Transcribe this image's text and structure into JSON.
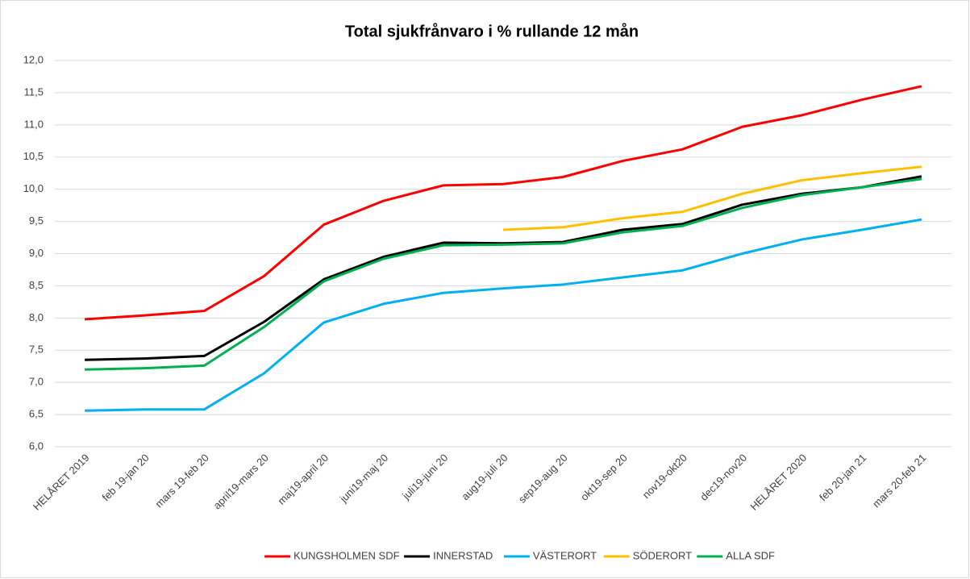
{
  "chart_data": {
    "type": "line",
    "title": "Total sjukfrånvaro i % rullande 12 mån",
    "categories": [
      "HELÅRET 2019",
      "feb 19-jan 20",
      "mars 19-feb 20",
      "april19-mars 20",
      "maj19-april 20",
      "juni19-maj 20",
      "juli19-juni 20",
      "aug19-juli 20",
      "sep19-aug 20",
      "okt19-sep 20",
      "nov19-okt20",
      "dec19-nov20",
      "HELÅRET 2020",
      "feb 20-jan 21",
      "mars 20-feb 21"
    ],
    "series": [
      {
        "name": "KUNGSHOLMEN SDF",
        "color": "#ff0000",
        "values": [
          7.98,
          8.04,
          8.11,
          8.65,
          9.45,
          9.82,
          10.06,
          10.08,
          10.19,
          10.44,
          10.62,
          10.97,
          11.15,
          11.39,
          11.6
        ]
      },
      {
        "name": "INNERSTAD",
        "color": "#000000",
        "values": [
          7.35,
          7.37,
          7.41,
          7.94,
          8.6,
          8.95,
          9.17,
          9.16,
          9.18,
          9.37,
          9.46,
          9.76,
          9.93,
          10.03,
          10.2
        ]
      },
      {
        "name": "VÄSTERORT",
        "color": "#00b0f0",
        "values": [
          6.56,
          6.58,
          6.58,
          7.14,
          7.93,
          8.22,
          8.39,
          8.46,
          8.52,
          8.63,
          8.74,
          9.0,
          9.22,
          9.37,
          9.53
        ]
      },
      {
        "name": "SÖDERORT",
        "color": "#ffc000",
        "values": [
          null,
          null,
          null,
          null,
          null,
          null,
          null,
          9.37,
          9.41,
          9.55,
          9.65,
          9.93,
          10.14,
          10.25,
          10.35
        ]
      },
      {
        "name": "ALLA SDF",
        "color": "#00b050",
        "values": [
          7.2,
          7.22,
          7.26,
          7.86,
          8.57,
          8.92,
          9.13,
          9.14,
          9.16,
          9.33,
          9.43,
          9.71,
          9.91,
          10.03,
          10.16
        ]
      }
    ],
    "ylim": [
      6,
      12
    ],
    "yticks": [
      {
        "value": 6,
        "label": "6,0"
      },
      {
        "value": 6.5,
        "label": "6,5"
      },
      {
        "value": 7,
        "label": "7,0"
      },
      {
        "value": 7.5,
        "label": "7,5"
      },
      {
        "value": 8,
        "label": "8,0"
      },
      {
        "value": 8.5,
        "label": "8,5"
      },
      {
        "value": 9,
        "label": "9,0"
      },
      {
        "value": 9.5,
        "label": "9,5"
      },
      {
        "value": 10,
        "label": "10,0"
      },
      {
        "value": 10.5,
        "label": "10,5"
      },
      {
        "value": 11,
        "label": "11,0"
      },
      {
        "value": 11.5,
        "label": "11,5"
      },
      {
        "value": 12,
        "label": "12,0"
      }
    ],
    "grid": true,
    "legend": "bottom"
  }
}
